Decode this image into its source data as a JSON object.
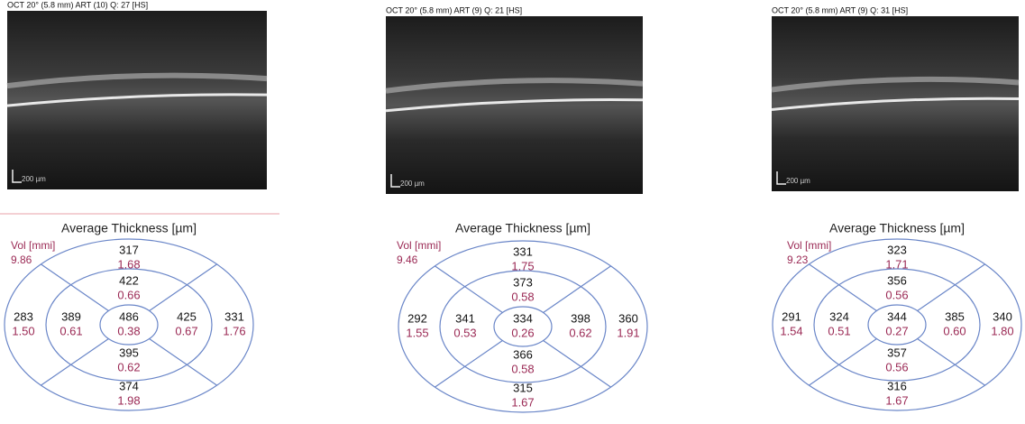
{
  "panels": [
    {
      "oct_header": "OCT 20° (5.8 mm) ART (10) Q: 27 [HS]",
      "scale": "200 µm",
      "map": {
        "title": "Average Thickness [µm]",
        "vol_label": "Vol [mmi]",
        "vol_total": "9.86",
        "sectors": [
          {
            "thickness": "317",
            "volume": "1.68"
          },
          {
            "thickness": "422",
            "volume": "0.66"
          },
          {
            "thickness": "283",
            "volume": "1.50"
          },
          {
            "thickness": "389",
            "volume": "0.61"
          },
          {
            "thickness": "486",
            "volume": "0.38"
          },
          {
            "thickness": "425",
            "volume": "0.67"
          },
          {
            "thickness": "331",
            "volume": "1.76"
          },
          {
            "thickness": "395",
            "volume": "0.62"
          },
          {
            "thickness": "374",
            "volume": "1.98"
          }
        ]
      }
    },
    {
      "oct_header": "OCT 20° (5.8 mm) ART (9) Q: 21 [HS]",
      "scale": "200 µm",
      "map": {
        "title": "Average Thickness [µm]",
        "vol_label": "Vol [mmi]",
        "vol_total": "9.46",
        "sectors": [
          {
            "thickness": "331",
            "volume": "1.75"
          },
          {
            "thickness": "373",
            "volume": "0.58"
          },
          {
            "thickness": "292",
            "volume": "1.55"
          },
          {
            "thickness": "341",
            "volume": "0.53"
          },
          {
            "thickness": "334",
            "volume": "0.26"
          },
          {
            "thickness": "398",
            "volume": "0.62"
          },
          {
            "thickness": "360",
            "volume": "1.91"
          },
          {
            "thickness": "366",
            "volume": "0.58"
          },
          {
            "thickness": "315",
            "volume": "1.67"
          }
        ]
      }
    },
    {
      "oct_header": "OCT 20° (5.8 mm) ART (9) Q: 31 [HS]",
      "scale": "200 µm",
      "map": {
        "title": "Average Thickness [µm]",
        "vol_label": "Vol [mmi]",
        "vol_total": "9.23",
        "sectors": [
          {
            "thickness": "323",
            "volume": "1.71"
          },
          {
            "thickness": "356",
            "volume": "0.56"
          },
          {
            "thickness": "291",
            "volume": "1.54"
          },
          {
            "thickness": "324",
            "volume": "0.51"
          },
          {
            "thickness": "344",
            "volume": "0.27"
          },
          {
            "thickness": "385",
            "volume": "0.60"
          },
          {
            "thickness": "340",
            "volume": "1.80"
          },
          {
            "thickness": "357",
            "volume": "0.56"
          },
          {
            "thickness": "316",
            "volume": "1.67"
          }
        ]
      }
    }
  ]
}
